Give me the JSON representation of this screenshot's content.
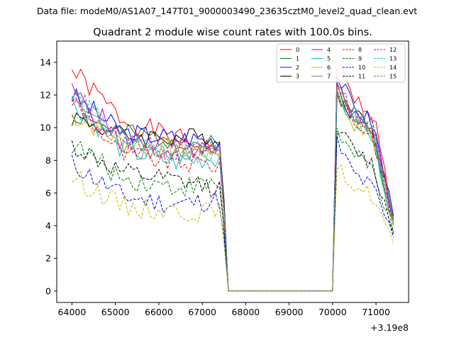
{
  "chart_data": {
    "type": "line",
    "suptitle": "Data file: modeM0/AS1A07_147T01_9000003490_23635cztM0_level2_quad_clean.evt",
    "title": "Quadrant 2 module wise count rates with 100.0s bins.",
    "xlabel": "",
    "ylabel": "",
    "x_offset_label": "+3.19e8",
    "xlim": [
      63650,
      71750
    ],
    "ylim": [
      -0.7,
      15.3
    ],
    "xticks": [
      64000,
      65000,
      66000,
      67000,
      68000,
      69000,
      70000,
      71000
    ],
    "yticks": [
      0,
      2,
      4,
      6,
      8,
      10,
      12,
      14
    ],
    "legend_position": "top-right",
    "legend_columns": 4,
    "bin_width": 100,
    "x_start": 64000,
    "x_step": 100,
    "segments": [
      {
        "start_index": 0,
        "end_index": 35
      },
      {
        "start_index": 60,
        "end_index": 74
      }
    ],
    "series": [
      {
        "name": "0",
        "color": "#ff0000",
        "dash": "solid",
        "level_seg1": [
          13.5,
          10.5,
          9.4,
          8.5
        ],
        "level_seg2": [
          14.6,
          11.8,
          10.9,
          4.5
        ],
        "seed": 1
      },
      {
        "name": "1",
        "color": "#008000",
        "dash": "solid",
        "level_seg1": [
          10.9,
          9.6,
          9.3,
          8.8
        ],
        "level_seg2": [
          12.8,
          10.5,
          9.8,
          4.2
        ],
        "seed": 2
      },
      {
        "name": "2",
        "color": "#0000ff",
        "dash": "solid",
        "level_seg1": [
          12.0,
          9.7,
          9.4,
          9.2
        ],
        "level_seg2": [
          13.8,
          11.3,
          10.3,
          4.6
        ],
        "seed": 3
      },
      {
        "name": "3",
        "color": "#000000",
        "dash": "solid",
        "level_seg1": [
          10.7,
          9.5,
          9.4,
          9.3
        ],
        "level_seg2": [
          13.1,
          10.8,
          10.2,
          4.1
        ],
        "seed": 4
      },
      {
        "name": "4",
        "color": "#bf00bf",
        "dash": "solid",
        "level_seg1": [
          12.2,
          9.4,
          8.8,
          8.4
        ],
        "level_seg2": [
          13.4,
          11.0,
          9.8,
          4.4
        ],
        "seed": 5
      },
      {
        "name": "5",
        "color": "#00bfbf",
        "dash": "solid",
        "level_seg1": [
          11.6,
          8.6,
          7.9,
          8.2
        ],
        "level_seg2": [
          12.0,
          10.6,
          9.2,
          4.3
        ],
        "seed": 6
      },
      {
        "name": "6",
        "color": "#bfbf00",
        "dash": "solid",
        "level_seg1": [
          10.8,
          9.1,
          8.7,
          8.5
        ],
        "level_seg2": [
          12.4,
          10.3,
          9.4,
          4.0
        ],
        "seed": 7
      },
      {
        "name": "7",
        "color": "#808080",
        "dash": "solid",
        "level_seg1": [
          11.9,
          8.9,
          8.4,
          8.3
        ],
        "level_seg2": [
          13.0,
          10.8,
          9.9,
          4.2
        ],
        "seed": 8
      },
      {
        "name": "8",
        "color": "#ff0000",
        "dash": "dashed",
        "level_seg1": [
          11.7,
          8.3,
          7.9,
          7.7
        ],
        "level_seg2": [
          12.9,
          10.4,
          9.5,
          4.3
        ],
        "seed": 9
      },
      {
        "name": "9",
        "color": "#008000",
        "dash": "dashed",
        "level_seg1": [
          9.0,
          6.9,
          6.4,
          6.5
        ],
        "level_seg2": [
          10.2,
          8.3,
          7.5,
          3.6
        ],
        "seed": 10
      },
      {
        "name": "10",
        "color": "#0000ff",
        "dash": "dashed",
        "level_seg1": [
          7.8,
          5.8,
          5.3,
          5.6
        ],
        "level_seg2": [
          9.6,
          7.2,
          6.3,
          3.3
        ],
        "seed": 11
      },
      {
        "name": "11",
        "color": "#000000",
        "dash": "dashed",
        "level_seg1": [
          8.9,
          7.2,
          6.7,
          6.3
        ],
        "level_seg2": [
          10.5,
          8.6,
          7.7,
          3.5
        ],
        "seed": 12
      },
      {
        "name": "12",
        "color": "#bf00bf",
        "dash": "dashed",
        "level_seg1": [
          11.5,
          9.1,
          8.6,
          8.6
        ],
        "level_seg2": [
          12.6,
          11.0,
          10.1,
          4.4
        ],
        "seed": 13
      },
      {
        "name": "13",
        "color": "#00bfbf",
        "dash": "dashed",
        "level_seg1": [
          12.0,
          9.3,
          8.5,
          8.4
        ],
        "level_seg2": [
          12.2,
          10.8,
          9.9,
          4.2
        ],
        "seed": 14
      },
      {
        "name": "14",
        "color": "#bfbf00",
        "dash": "dashed",
        "level_seg1": [
          7.0,
          5.2,
          4.9,
          4.8
        ],
        "level_seg2": [
          7.6,
          6.6,
          5.8,
          2.9
        ],
        "seed": 15
      },
      {
        "name": "15",
        "color": "#808080",
        "dash": "dashed",
        "level_seg1": [
          12.3,
          9.0,
          8.5,
          8.4
        ],
        "level_seg2": [
          13.2,
          10.9,
          10.0,
          4.5
        ],
        "seed": 16
      }
    ]
  }
}
